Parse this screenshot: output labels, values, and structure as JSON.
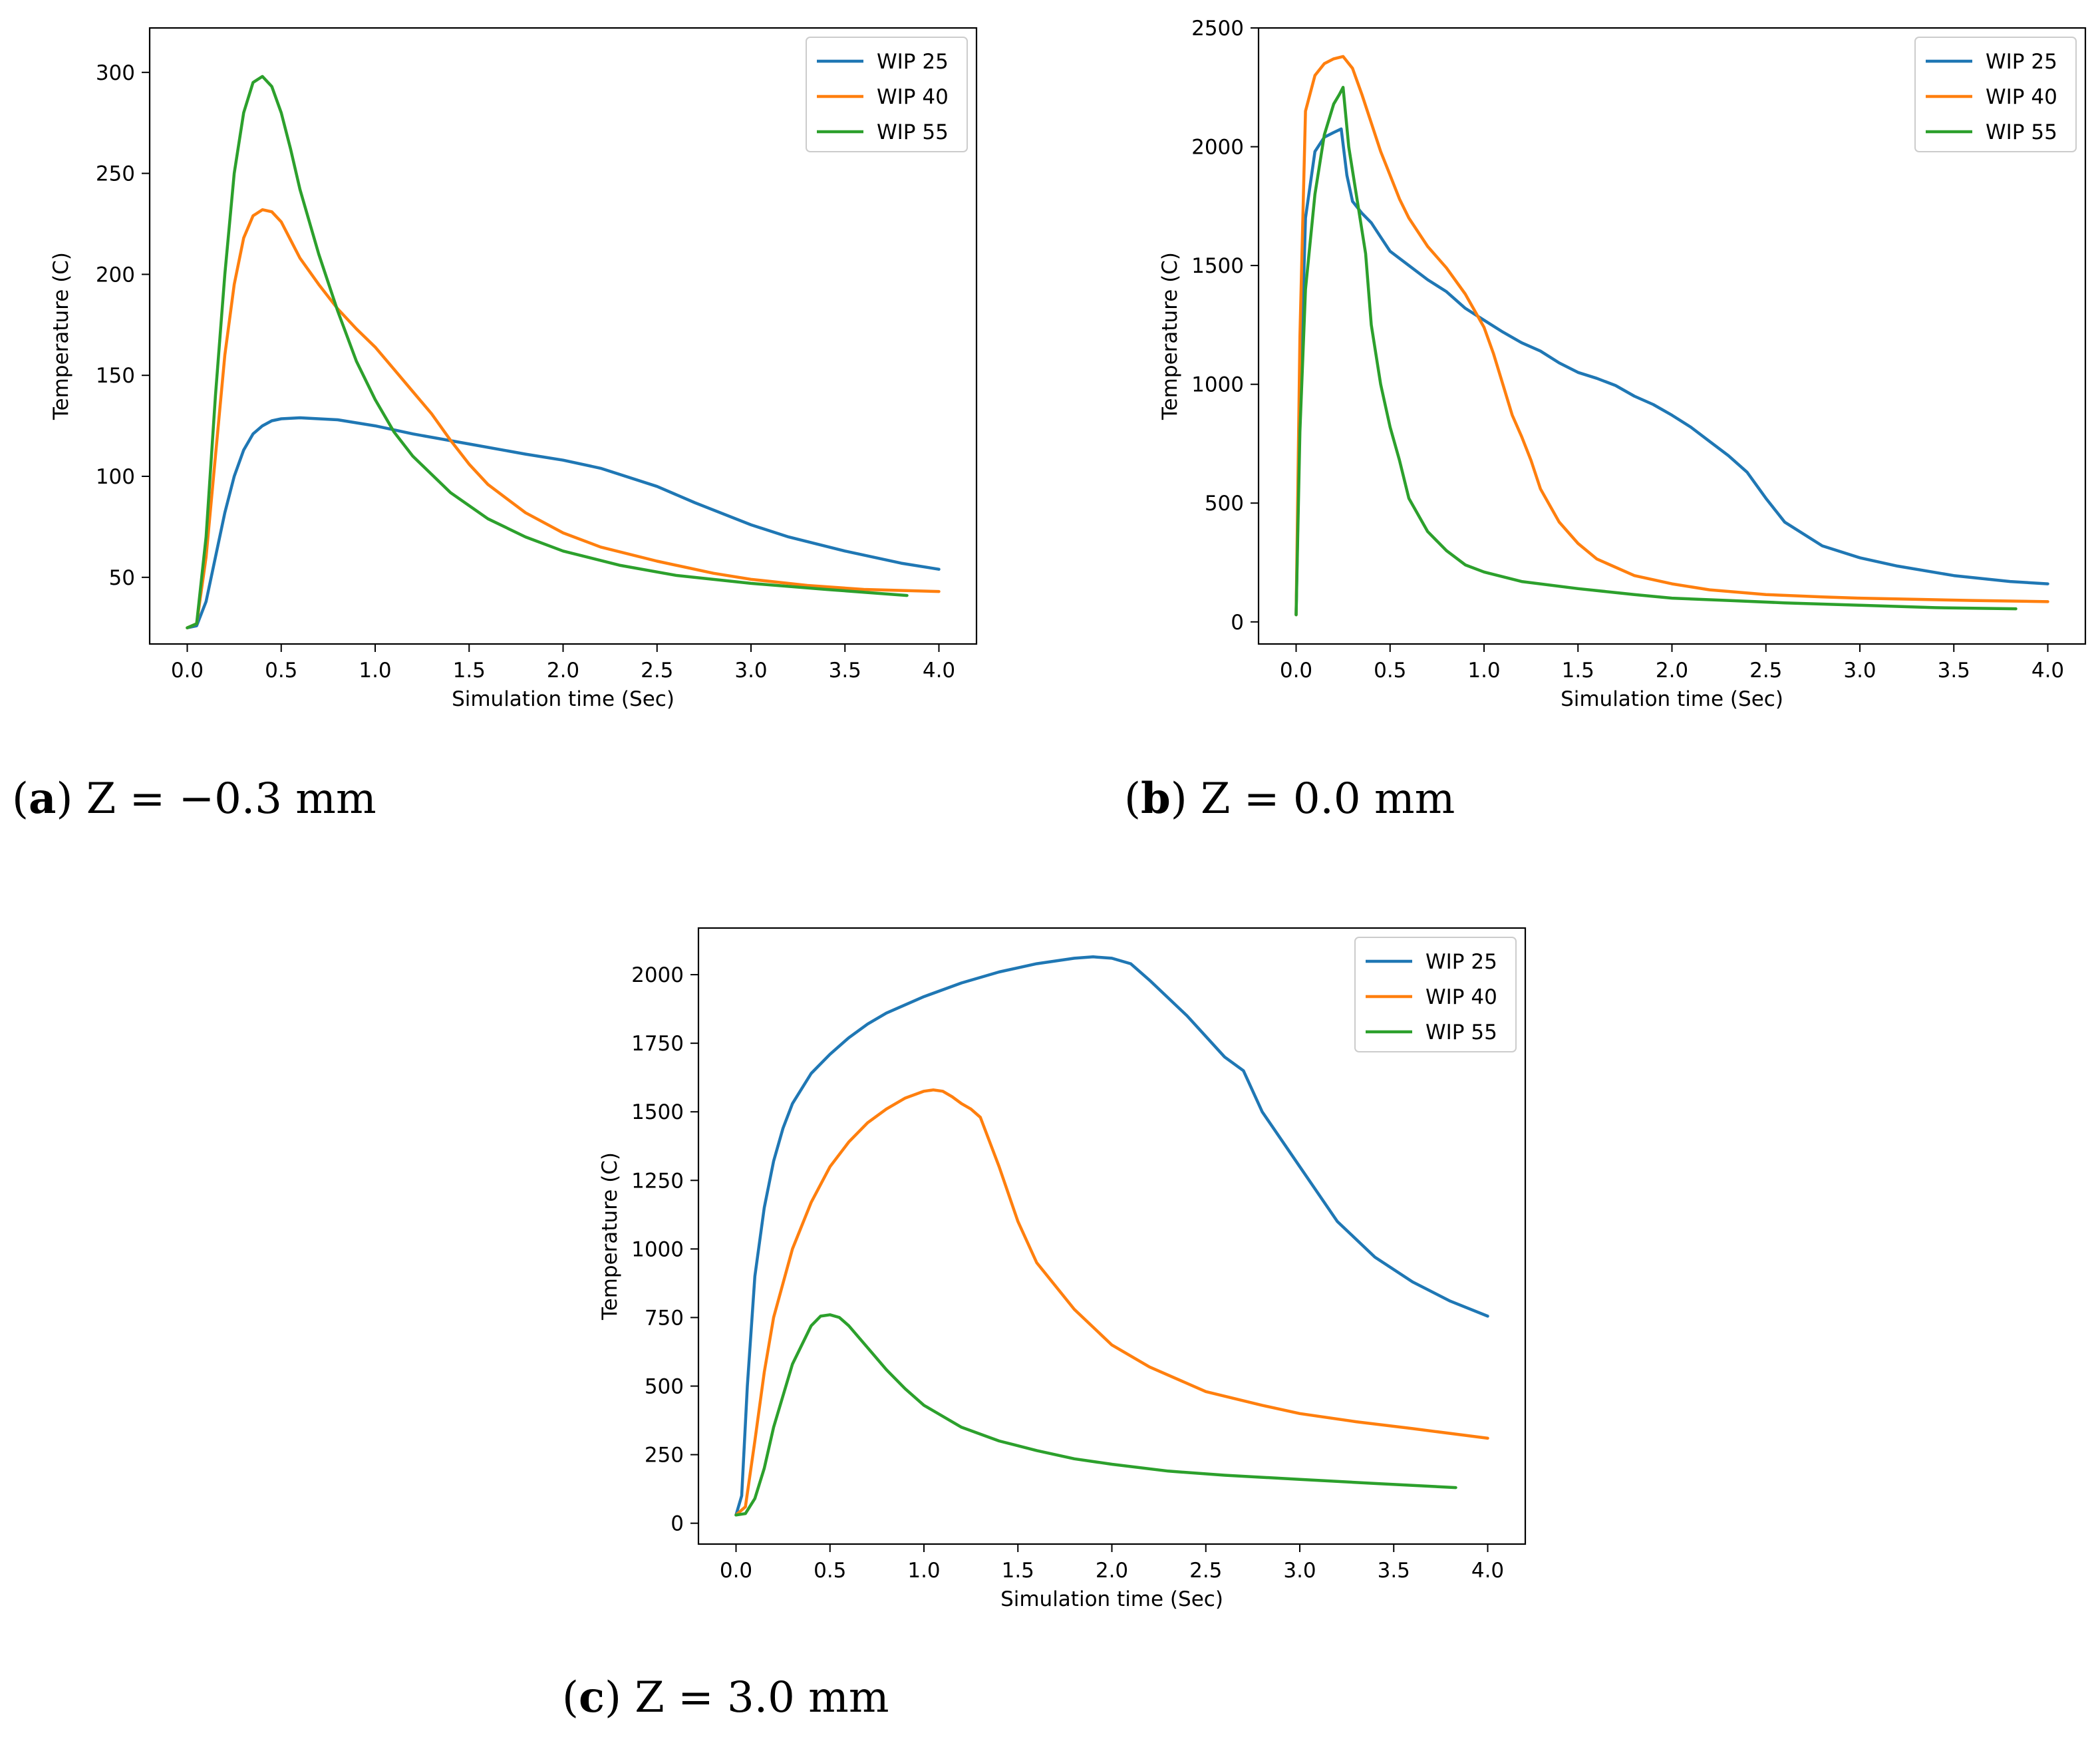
{
  "chart_data": [
    {
      "id": "a",
      "type": "line",
      "panel_label": "a",
      "caption": "Z = −0.3 mm",
      "xlabel": "Simulation time (Sec)",
      "ylabel": "Temperature (C)",
      "xlim": [
        -0.2,
        4.2
      ],
      "ylim": [
        17,
        322
      ],
      "xticks": [
        0.0,
        0.5,
        1.0,
        1.5,
        2.0,
        2.5,
        3.0,
        3.5,
        4.0
      ],
      "xtick_labels": [
        "0.0",
        "0.5",
        "1.0",
        "1.5",
        "2.0",
        "2.5",
        "3.0",
        "3.5",
        "4.0"
      ],
      "yticks": [
        50,
        100,
        150,
        200,
        250,
        300
      ],
      "ytick_labels": [
        "50",
        "100",
        "150",
        "200",
        "250",
        "300"
      ],
      "legend_position": "top-right",
      "series": [
        {
          "name": "WIP 25",
          "color": "#1f77b4",
          "x": [
            0,
            0.05,
            0.1,
            0.15,
            0.2,
            0.25,
            0.3,
            0.35,
            0.4,
            0.45,
            0.5,
            0.6,
            0.7,
            0.8,
            1.0,
            1.2,
            1.5,
            1.8,
            2.0,
            2.2,
            2.5,
            2.7,
            3.0,
            3.2,
            3.5,
            3.8,
            4.0
          ],
          "y": [
            25,
            26,
            38,
            60,
            82,
            100,
            113,
            121,
            125,
            127.5,
            128.5,
            129,
            128.5,
            128,
            125,
            121,
            116,
            111,
            108,
            104,
            95,
            87,
            76,
            70,
            63,
            57,
            54
          ]
        },
        {
          "name": "WIP 40",
          "color": "#ff7f0e",
          "x": [
            0,
            0.05,
            0.1,
            0.15,
            0.2,
            0.25,
            0.3,
            0.35,
            0.4,
            0.45,
            0.5,
            0.55,
            0.6,
            0.7,
            0.8,
            0.9,
            1.0,
            1.1,
            1.2,
            1.3,
            1.4,
            1.5,
            1.6,
            1.8,
            2.0,
            2.2,
            2.5,
            2.8,
            3.0,
            3.3,
            3.6,
            4.0
          ],
          "y": [
            25,
            27,
            60,
            110,
            160,
            195,
            218,
            229,
            232,
            231,
            226,
            217,
            208,
            195,
            183,
            173,
            164,
            153,
            142,
            131,
            118,
            106,
            96,
            82,
            72,
            65,
            58,
            52,
            49,
            46,
            44,
            43
          ]
        },
        {
          "name": "WIP 55",
          "color": "#2ca02c",
          "x": [
            0,
            0.05,
            0.1,
            0.15,
            0.2,
            0.25,
            0.3,
            0.35,
            0.4,
            0.45,
            0.5,
            0.55,
            0.6,
            0.7,
            0.8,
            0.9,
            1.0,
            1.1,
            1.2,
            1.4,
            1.6,
            1.8,
            2.0,
            2.3,
            2.6,
            3.0,
            3.4,
            3.83
          ],
          "y": [
            25,
            27,
            70,
            140,
            200,
            250,
            280,
            295,
            298,
            293,
            280,
            262,
            242,
            210,
            182,
            157,
            138,
            122,
            110,
            92,
            79,
            70,
            63,
            56,
            51,
            47,
            44,
            41
          ]
        }
      ]
    },
    {
      "id": "b",
      "type": "line",
      "panel_label": "b",
      "caption": "Z = 0.0 mm",
      "xlabel": "Simulation time (Sec)",
      "ylabel": "Temperature (C)",
      "xlim": [
        -0.2,
        4.2
      ],
      "ylim": [
        -93,
        2500
      ],
      "xticks": [
        0.0,
        0.5,
        1.0,
        1.5,
        2.0,
        2.5,
        3.0,
        3.5,
        4.0
      ],
      "xtick_labels": [
        "0.0",
        "0.5",
        "1.0",
        "1.5",
        "2.0",
        "2.5",
        "3.0",
        "3.5",
        "4.0"
      ],
      "yticks": [
        0,
        500,
        1000,
        1500,
        2000,
        2500
      ],
      "ytick_labels": [
        "0",
        "500",
        "1000",
        "1500",
        "2000",
        "2500"
      ],
      "legend_position": "top-right",
      "series": [
        {
          "name": "WIP 25",
          "color": "#1f77b4",
          "x": [
            0,
            0.02,
            0.05,
            0.1,
            0.15,
            0.2,
            0.24,
            0.27,
            0.3,
            0.35,
            0.4,
            0.45,
            0.5,
            0.6,
            0.7,
            0.8,
            0.9,
            1.0,
            1.1,
            1.2,
            1.3,
            1.4,
            1.5,
            1.6,
            1.7,
            1.8,
            1.9,
            2.0,
            2.1,
            2.2,
            2.3,
            2.4,
            2.5,
            2.6,
            2.8,
            3.0,
            3.2,
            3.5,
            3.8,
            4.0
          ],
          "y": [
            30,
            900,
            1700,
            1980,
            2040,
            2060,
            2075,
            1880,
            1770,
            1720,
            1680,
            1620,
            1560,
            1500,
            1440,
            1390,
            1320,
            1270,
            1220,
            1175,
            1140,
            1090,
            1050,
            1025,
            995,
            950,
            915,
            870,
            820,
            760,
            700,
            630,
            520,
            420,
            320,
            270,
            235,
            195,
            170,
            160
          ]
        },
        {
          "name": "WIP 40",
          "color": "#ff7f0e",
          "x": [
            0,
            0.02,
            0.05,
            0.1,
            0.15,
            0.2,
            0.25,
            0.3,
            0.35,
            0.4,
            0.45,
            0.5,
            0.55,
            0.6,
            0.7,
            0.8,
            0.9,
            1.0,
            1.05,
            1.1,
            1.15,
            1.2,
            1.25,
            1.3,
            1.4,
            1.5,
            1.6,
            1.8,
            2.0,
            2.2,
            2.5,
            2.8,
            3.0,
            3.3,
            3.6,
            4.0
          ],
          "y": [
            30,
            1200,
            2150,
            2300,
            2350,
            2370,
            2380,
            2330,
            2220,
            2100,
            1980,
            1880,
            1780,
            1700,
            1580,
            1490,
            1380,
            1240,
            1130,
            1000,
            870,
            780,
            680,
            560,
            420,
            330,
            265,
            195,
            160,
            135,
            115,
            105,
            100,
            95,
            90,
            85
          ]
        },
        {
          "name": "WIP 55",
          "color": "#2ca02c",
          "x": [
            0,
            0.02,
            0.05,
            0.1,
            0.15,
            0.2,
            0.23,
            0.25,
            0.28,
            0.32,
            0.37,
            0.4,
            0.45,
            0.5,
            0.55,
            0.6,
            0.7,
            0.8,
            0.9,
            1.0,
            1.2,
            1.5,
            1.8,
            2.0,
            2.3,
            2.6,
            3.0,
            3.4,
            3.83
          ],
          "y": [
            30,
            800,
            1400,
            1800,
            2050,
            2180,
            2220,
            2250,
            2000,
            1800,
            1550,
            1250,
            1000,
            820,
            680,
            520,
            380,
            300,
            240,
            210,
            170,
            140,
            115,
            100,
            90,
            80,
            70,
            60,
            55
          ]
        }
      ]
    },
    {
      "id": "c",
      "type": "line",
      "panel_label": "c",
      "caption": "Z = 3.0 mm",
      "xlabel": "Simulation time (Sec)",
      "ylabel": "Temperature (C)",
      "xlim": [
        -0.2,
        4.2
      ],
      "ylim": [
        -76,
        2170
      ],
      "xticks": [
        0.0,
        0.5,
        1.0,
        1.5,
        2.0,
        2.5,
        3.0,
        3.5,
        4.0
      ],
      "xtick_labels": [
        "0.0",
        "0.5",
        "1.0",
        "1.5",
        "2.0",
        "2.5",
        "3.0",
        "3.5",
        "4.0"
      ],
      "yticks": [
        0,
        250,
        500,
        750,
        1000,
        1250,
        1500,
        1750,
        2000
      ],
      "ytick_labels": [
        "0",
        "250",
        "500",
        "750",
        "1000",
        "1250",
        "1500",
        "1750",
        "2000"
      ],
      "legend_position": "top-right",
      "series": [
        {
          "name": "WIP 25",
          "color": "#1f77b4",
          "x": [
            0,
            0.03,
            0.06,
            0.1,
            0.15,
            0.2,
            0.25,
            0.3,
            0.4,
            0.5,
            0.6,
            0.7,
            0.8,
            1.0,
            1.2,
            1.4,
            1.6,
            1.8,
            1.9,
            2.0,
            2.1,
            2.2,
            2.4,
            2.6,
            2.7,
            2.8,
            3.0,
            3.2,
            3.4,
            3.6,
            3.8,
            4.0
          ],
          "y": [
            30,
            100,
            500,
            900,
            1150,
            1320,
            1440,
            1530,
            1640,
            1710,
            1770,
            1820,
            1860,
            1920,
            1970,
            2010,
            2040,
            2060,
            2065,
            2060,
            2040,
            1980,
            1850,
            1700,
            1650,
            1500,
            1300,
            1100,
            970,
            880,
            810,
            755
          ]
        },
        {
          "name": "WIP 40",
          "color": "#ff7f0e",
          "x": [
            0,
            0.05,
            0.1,
            0.15,
            0.2,
            0.3,
            0.4,
            0.5,
            0.6,
            0.7,
            0.8,
            0.9,
            1.0,
            1.05,
            1.1,
            1.15,
            1.2,
            1.25,
            1.3,
            1.4,
            1.5,
            1.6,
            1.8,
            2.0,
            2.2,
            2.5,
            2.8,
            3.0,
            3.3,
            3.6,
            4.0
          ],
          "y": [
            30,
            60,
            300,
            550,
            750,
            1000,
            1170,
            1300,
            1390,
            1460,
            1510,
            1550,
            1575,
            1580,
            1575,
            1555,
            1530,
            1510,
            1480,
            1300,
            1100,
            950,
            780,
            650,
            570,
            480,
            430,
            400,
            370,
            345,
            310
          ]
        },
        {
          "name": "WIP 55",
          "color": "#2ca02c",
          "x": [
            0,
            0.05,
            0.1,
            0.15,
            0.2,
            0.3,
            0.4,
            0.45,
            0.5,
            0.55,
            0.6,
            0.7,
            0.8,
            0.9,
            1.0,
            1.2,
            1.4,
            1.6,
            1.8,
            2.0,
            2.3,
            2.6,
            3.0,
            3.4,
            3.83
          ],
          "y": [
            30,
            35,
            90,
            200,
            350,
            580,
            720,
            755,
            760,
            750,
            720,
            640,
            560,
            490,
            430,
            350,
            300,
            265,
            235,
            215,
            190,
            175,
            160,
            145,
            130
          ]
        }
      ]
    }
  ]
}
